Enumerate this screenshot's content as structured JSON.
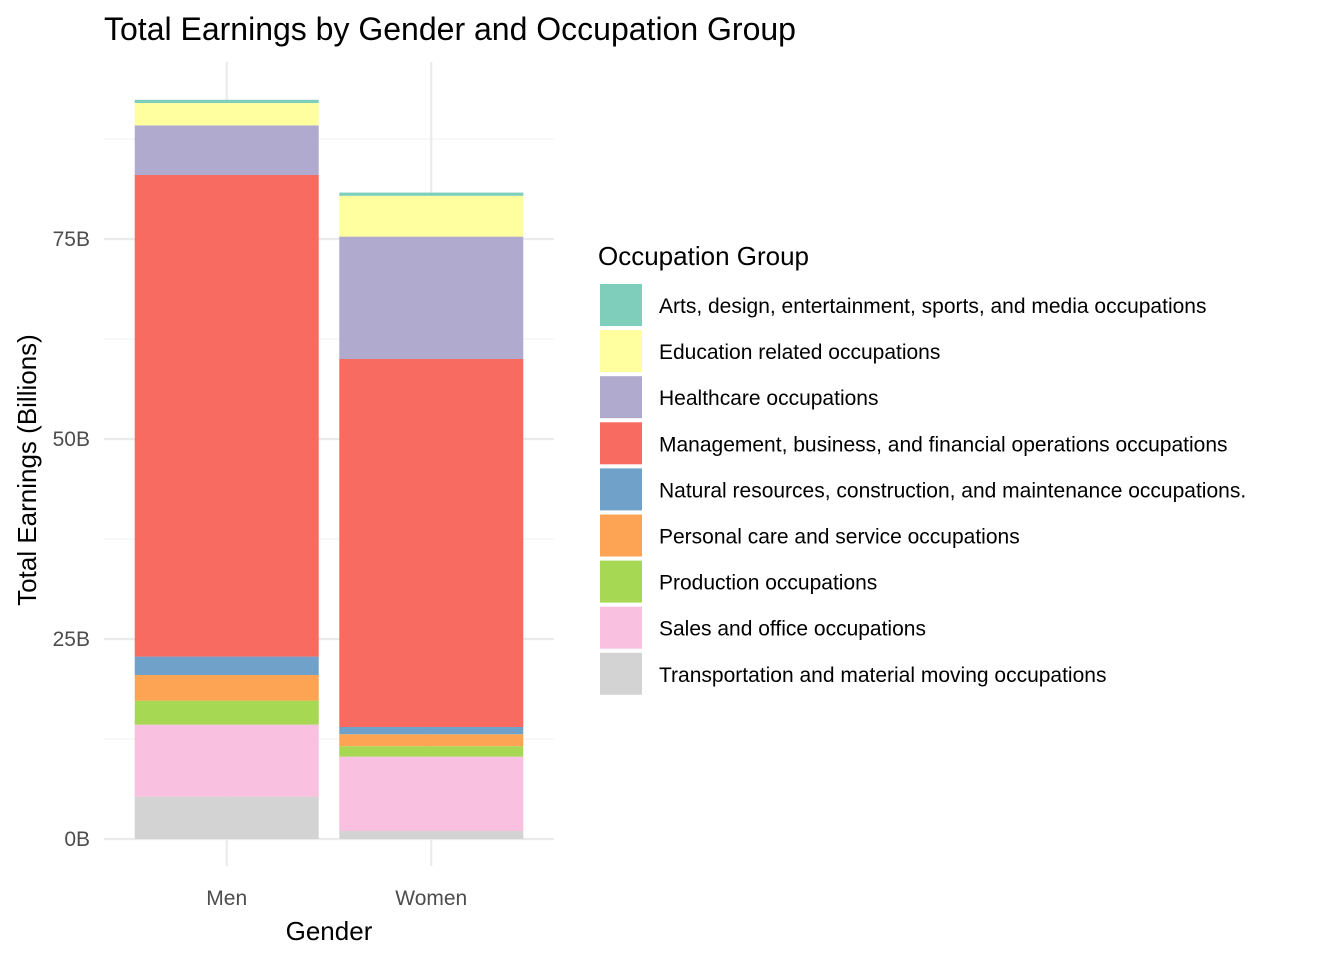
{
  "chart_data": {
    "type": "bar",
    "stacked": true,
    "title": "Total Earnings by Gender and Occupation Group",
    "xlabel": "Gender",
    "ylabel": "Total Earnings (Billions)",
    "categories": [
      "Men",
      "Women"
    ],
    "ylim": [
      0,
      92
    ],
    "yticks": [
      0,
      25,
      50,
      75
    ],
    "ytick_labels": [
      "0B",
      "25B",
      "50B",
      "75B"
    ],
    "grid": true,
    "legend": {
      "title": "Occupation Group",
      "position": "right"
    },
    "series": [
      {
        "name": "Transportation and material moving occupations",
        "color": "#D3D3D3",
        "values": [
          5.3,
          1.0
        ]
      },
      {
        "name": "Sales and office occupations",
        "color": "#F9C0E0",
        "values": [
          9.0,
          9.3
        ]
      },
      {
        "name": "Production occupations",
        "color": "#A6D854",
        "values": [
          3.0,
          1.3
        ]
      },
      {
        "name": "Personal care and service occupations",
        "color": "#FCA454",
        "values": [
          3.2,
          1.5
        ]
      },
      {
        "name": "Natural resources, construction, and maintenance occupations.",
        "color": "#6FA1C9",
        "values": [
          2.3,
          0.9
        ]
      },
      {
        "name": "Management, business, and financial operations occupations",
        "color": "#F76B61",
        "values": [
          60.2,
          46.0
        ]
      },
      {
        "name": "Healthcare occupations",
        "color": "#B0AACF",
        "values": [
          6.2,
          15.3
        ]
      },
      {
        "name": "Education related occupations",
        "color": "#FFFF9F",
        "values": [
          2.8,
          5.1
        ]
      },
      {
        "name": "Arts, design, entertainment, sports, and media occupations",
        "color": "#7FCDBB",
        "values": [
          0.4,
          0.4
        ]
      }
    ],
    "legend_order": [
      "Arts, design, entertainment, sports, and media occupations",
      "Education related occupations",
      "Healthcare occupations",
      "Management, business, and financial operations occupations",
      "Natural resources, construction, and maintenance occupations.",
      "Personal care and service occupations",
      "Production occupations",
      "Sales and office occupations",
      "Transportation and material moving occupations"
    ]
  }
}
